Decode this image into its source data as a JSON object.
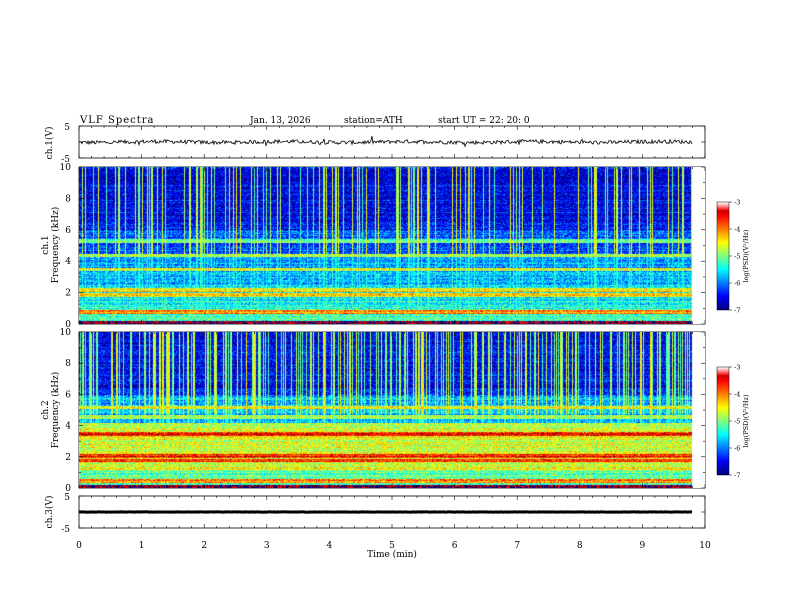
{
  "header": {
    "title": "VLF  Spectra",
    "date": "Jan. 13, 2026",
    "station": "station=ATH",
    "start": "start  UT  =   22: 20: 0"
  },
  "chart_data": [
    {
      "type": "line",
      "panel": "ch1-waveform",
      "ylabel": "ch.1(V)",
      "ylim": [
        -5,
        5
      ],
      "yticks": [
        "5",
        "-5"
      ],
      "xlim": [
        0,
        10
      ],
      "series": [
        {
          "name": "ch.1",
          "mean": 0,
          "amplitude": 0.6,
          "x_end": 9.8
        }
      ]
    },
    {
      "type": "heatmap",
      "panel": "ch1-spectrogram",
      "ylabel": "ch.1\nFrequency (kHz)",
      "ylabel_line1": "ch.1",
      "ylabel_line2": "Frequency (kHz)",
      "ylim": [
        0,
        10
      ],
      "yticks": [
        "0",
        "2",
        "4",
        "6",
        "8",
        "10"
      ],
      "xlim": [
        0,
        9.8
      ],
      "bands_khz": [
        5.3,
        4.4,
        3.5,
        2.2,
        1.9,
        0.8
      ],
      "noise_profile": "strong broadband spikes above 4.5 kHz, weaker below",
      "colorbar": {
        "label": "log(PSD)(V²/Hz)",
        "min": -7,
        "max": -3,
        "ticks": [
          "-3",
          "-4",
          "-5",
          "-6",
          "-7"
        ]
      }
    },
    {
      "type": "heatmap",
      "panel": "ch2-spectrogram",
      "ylabel_line1": "ch.2",
      "ylabel_line2": "Frequency (kHz)",
      "ylim": [
        0,
        10
      ],
      "yticks": [
        "0",
        "2",
        "4",
        "6",
        "8",
        "10"
      ],
      "xlim": [
        0,
        9.8
      ],
      "bands_khz": [
        5.2,
        4.6,
        3.5,
        2.1,
        1.8,
        0.5
      ],
      "noise_profile": "dense broadband spikes above 5 kHz, high power 1-4 kHz",
      "colorbar": {
        "label": "log(PSD)(V²/Hz)",
        "min": -7,
        "max": -3,
        "ticks": [
          "-3",
          "-4",
          "-5",
          "-6",
          "-7"
        ]
      }
    },
    {
      "type": "line",
      "panel": "ch3-waveform",
      "ylabel": "ch.3(V)",
      "ylim": [
        -5,
        5
      ],
      "yticks": [
        "5",
        "-5"
      ],
      "xlim": [
        0,
        10
      ],
      "xlabel": "Time  (min)",
      "xticks": [
        "0",
        "1",
        "2",
        "3",
        "4",
        "5",
        "6",
        "7",
        "8",
        "9",
        "10"
      ],
      "series": [
        {
          "name": "ch.3",
          "mean": 0,
          "amplitude": 0.1,
          "x_end": 9.8
        }
      ]
    }
  ]
}
